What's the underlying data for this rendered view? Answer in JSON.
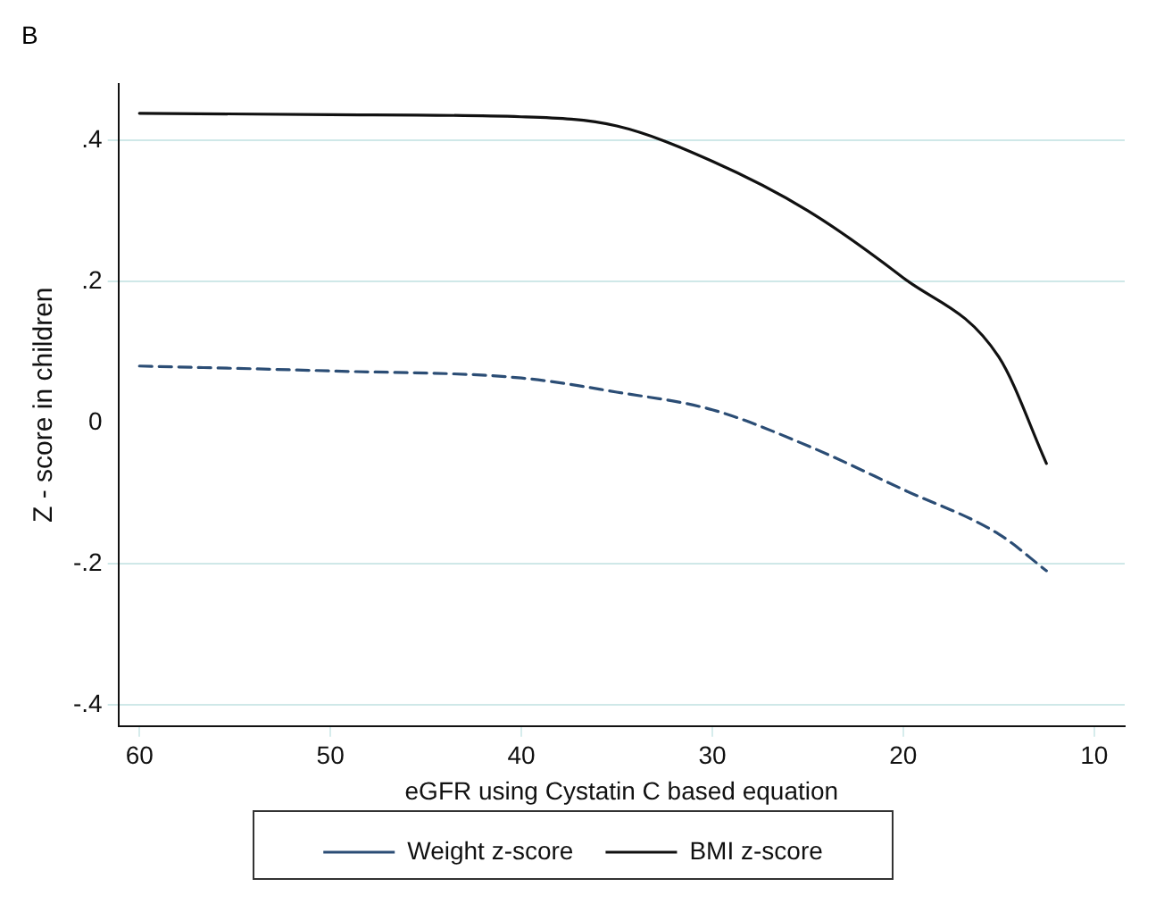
{
  "chart_data": {
    "type": "line",
    "title": "B",
    "xlabel": "eGFR using Cystatin C based equation",
    "ylabel": "Z - score in children",
    "x": [
      60,
      50,
      40,
      35,
      30,
      25,
      20,
      15,
      12.5
    ],
    "series": [
      {
        "name": "Weight z-score",
        "color": "#2b4d75",
        "line_style": "dashed",
        "values": [
          0.08,
          0.073,
          0.063,
          0.043,
          0.018,
          -0.033,
          -0.095,
          -0.158,
          -0.21
        ]
      },
      {
        "name": "BMI z-score",
        "color": "#111111",
        "line_style": "solid",
        "values": [
          0.438,
          0.436,
          0.433,
          0.42,
          0.37,
          0.3,
          0.205,
          0.093,
          -0.058
        ]
      }
    ],
    "xlim": [
      61.1,
      8.4
    ],
    "xticks": [
      60,
      50,
      40,
      30,
      20,
      10
    ],
    "ylim": [
      -0.43,
      0.48
    ],
    "yticks": [
      {
        "value": -0.4,
        "label": "-.4"
      },
      {
        "value": -0.2,
        "label": "-.2"
      },
      0,
      {
        "value": 0.2,
        "label": ".2"
      },
      {
        "value": 0.4,
        "label": ".4"
      }
    ],
    "grid": "y",
    "legend": "bottom",
    "marker": "none"
  }
}
